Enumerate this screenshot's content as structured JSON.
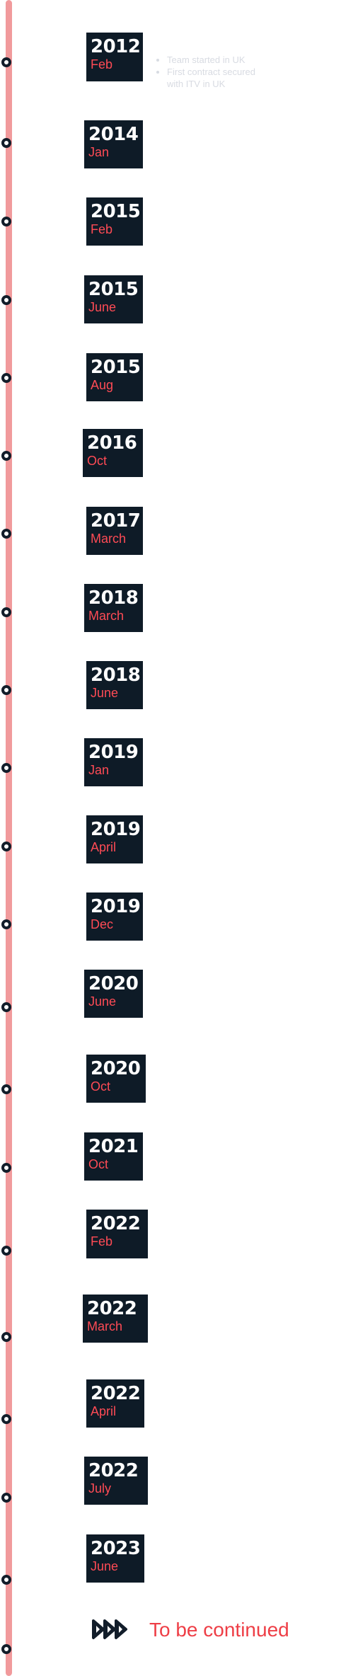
{
  "milestones": [
    {
      "year": "2012",
      "month": "Feb"
    },
    {
      "year": "2014",
      "month": "Jan"
    },
    {
      "year": "2015",
      "month": "Feb"
    },
    {
      "year": "2015",
      "month": "June"
    },
    {
      "year": "2015",
      "month": "Aug"
    },
    {
      "year": "2016",
      "month": "Oct"
    },
    {
      "year": "2017",
      "month": "March"
    },
    {
      "year": "2018",
      "month": "March"
    },
    {
      "year": "2018",
      "month": "June"
    },
    {
      "year": "2019",
      "month": "Jan"
    },
    {
      "year": "2019",
      "month": "April"
    },
    {
      "year": "2019",
      "month": "Dec"
    },
    {
      "year": "2020",
      "month": "June"
    },
    {
      "year": "2020",
      "month": "Oct"
    },
    {
      "year": "2021",
      "month": "Oct"
    },
    {
      "year": "2022",
      "month": "Feb"
    },
    {
      "year": "2022",
      "month": "March"
    },
    {
      "year": "2022",
      "month": "April"
    },
    {
      "year": "2022",
      "month": "July"
    },
    {
      "year": "2023",
      "month": "June"
    }
  ],
  "first_milestone_notes": [
    "Team started in UK",
    "First contract secured with ITV in UK"
  ],
  "footer": {
    "icon": "triple-play-arrows-icon",
    "label": "To be continued"
  },
  "colors": {
    "line": "#f19a9c",
    "badge_bg": "#0e1b27",
    "month_text": "#ff4b55",
    "accent": "#ee3e46"
  }
}
